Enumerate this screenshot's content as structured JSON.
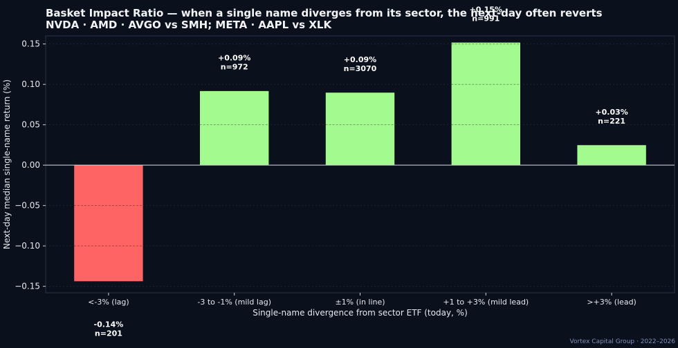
{
  "title_line1": "Basket Impact Ratio — when a single name diverges from its sector, the next-day often reverts",
  "title_line2": "NVDA · AMD · AVGO vs SMH;  META · AAPL vs XLK",
  "footer": "Vortex Capital Group  ·  2022–2026",
  "colors": {
    "positive": "#a3fb90",
    "negative": "#ff6464",
    "background": "#0b111c",
    "text": "#e6e8ee"
  },
  "chart_data": {
    "type": "bar",
    "categories": [
      "<-3% (lag)",
      "-3 to -1% (mild lag)",
      "±1% (in line)",
      "+1 to +3% (mild lead)",
      ">+3% (lead)"
    ],
    "values": [
      -0.144,
      0.092,
      0.09,
      0.152,
      0.025
    ],
    "value_labels": [
      "-0.14%",
      "+0.09%",
      "+0.09%",
      "+0.15%",
      "+0.03%"
    ],
    "n_labels": [
      "n=201",
      "n=972",
      "n=3070",
      "n=991",
      "n=221"
    ],
    "xlabel": "Single-name divergence from sector ETF (today, %)",
    "ylabel": "Next-day median single-name return (%)",
    "ylim": [
      -0.158,
      0.16
    ],
    "yticks": [
      -0.15,
      -0.1,
      -0.05,
      0.0,
      0.05,
      0.1,
      0.15
    ],
    "ytick_labels": [
      "−0.15",
      "−0.10",
      "−0.05",
      "0.00",
      "0.05",
      "0.10",
      "0.15"
    ],
    "grid": true,
    "zero_line": true
  }
}
